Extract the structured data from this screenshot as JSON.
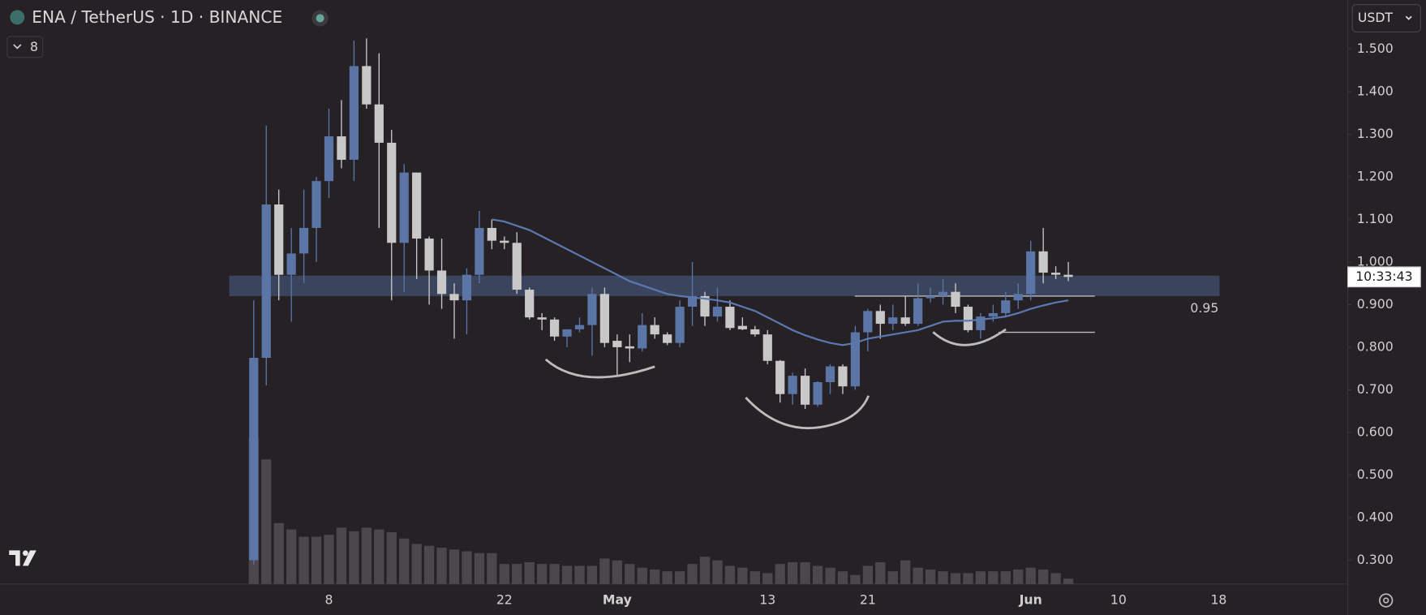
{
  "chart_data": {
    "type": "candlestick",
    "title": "ENA / TetherUS · 1D · BINANCE",
    "indicator_count": "8",
    "currency": "USDT",
    "countdown": "10:33:43",
    "categories": [
      null,
      null,
      null,
      null,
      null,
      null,
      "8",
      null,
      null,
      null,
      null,
      null,
      null,
      null,
      null,
      null,
      null,
      null,
      null,
      null,
      "22",
      null,
      null,
      null,
      null,
      null,
      null,
      null,
      null,
      "May",
      null,
      null,
      null,
      null,
      null,
      null,
      null,
      null,
      null,
      null,
      null,
      "13",
      null,
      null,
      null,
      null,
      null,
      null,
      null,
      "21",
      null,
      null,
      null,
      null,
      null,
      null,
      null,
      null,
      null,
      null,
      null,
      null,
      "Jun",
      null,
      null,
      null,
      null,
      null,
      null,
      "10",
      null,
      null,
      null,
      null,
      null,
      null,
      null,
      "18",
      null,
      null,
      null,
      null,
      null,
      null,
      null,
      null,
      null
    ],
    "open": [
      0.3,
      0.775,
      1.135,
      0.97,
      1.02,
      1.08,
      1.19,
      1.295,
      1.24,
      1.46,
      1.37,
      1.28,
      1.045,
      1.21,
      1.055,
      0.98,
      0.925,
      0.91,
      0.97,
      1.08,
      1.05,
      1.045,
      0.935,
      0.87,
      0.865,
      0.825,
      0.842,
      0.852,
      0.925,
      0.815,
      0.802,
      0.797,
      0.852,
      0.83,
      0.81,
      0.895,
      0.92,
      0.872,
      0.895,
      0.85,
      0.842,
      0.83,
      0.768,
      0.69,
      0.733,
      0.665,
      0.718,
      0.755,
      0.708,
      0.835,
      0.885,
      0.855,
      0.87,
      0.855,
      0.915,
      0.92,
      0.93,
      0.895,
      0.84,
      0.872,
      0.88,
      0.91,
      0.925,
      1.025,
      0.975,
      0.97,
      null,
      null,
      null,
      null,
      null,
      null,
      null,
      null,
      null,
      null,
      null,
      null,
      null,
      null,
      null,
      null,
      null,
      null,
      null,
      null,
      null
    ],
    "high": [
      0.91,
      1.32,
      1.17,
      1.08,
      1.17,
      1.2,
      1.36,
      1.38,
      1.52,
      1.525,
      1.49,
      1.31,
      1.23,
      1.21,
      1.06,
      1.055,
      0.95,
      0.985,
      1.12,
      1.1,
      1.06,
      1.07,
      0.94,
      0.88,
      0.87,
      0.84,
      0.87,
      0.94,
      0.94,
      0.83,
      0.83,
      0.88,
      0.87,
      0.835,
      0.91,
      1.0,
      0.93,
      0.94,
      0.91,
      0.87,
      0.85,
      0.84,
      0.77,
      0.74,
      0.75,
      0.72,
      0.76,
      0.76,
      0.85,
      0.89,
      0.9,
      0.9,
      0.92,
      0.95,
      0.94,
      0.96,
      0.95,
      0.9,
      0.88,
      0.9,
      0.93,
      0.95,
      1.05,
      1.08,
      0.99,
      1.0,
      null,
      null,
      null,
      null,
      null,
      null,
      null,
      null,
      null,
      null,
      null,
      null,
      null,
      null,
      null,
      null,
      null,
      null,
      null,
      null,
      null
    ],
    "low": [
      0.29,
      0.71,
      0.91,
      0.86,
      0.95,
      1.0,
      1.15,
      1.22,
      1.19,
      1.36,
      1.08,
      0.91,
      0.93,
      0.96,
      0.9,
      0.89,
      0.82,
      0.83,
      0.95,
      1.03,
      1.03,
      0.925,
      0.865,
      0.84,
      0.815,
      0.8,
      0.835,
      0.78,
      0.8,
      0.735,
      0.765,
      0.79,
      0.82,
      0.805,
      0.8,
      0.85,
      0.85,
      0.86,
      0.84,
      0.84,
      0.825,
      0.76,
      0.67,
      0.665,
      0.655,
      0.66,
      0.69,
      0.69,
      0.7,
      0.79,
      0.82,
      0.84,
      0.85,
      0.85,
      0.905,
      0.9,
      0.88,
      0.835,
      0.82,
      0.86,
      0.87,
      0.89,
      0.91,
      0.95,
      0.96,
      0.955,
      null,
      null,
      null,
      null,
      null,
      null,
      null,
      null,
      null,
      null,
      null,
      null,
      null,
      null,
      null,
      null,
      null,
      null,
      null,
      null,
      null
    ],
    "close": [
      0.775,
      1.135,
      0.97,
      1.02,
      1.08,
      1.19,
      1.295,
      1.24,
      1.46,
      1.37,
      1.28,
      1.045,
      1.21,
      1.055,
      0.98,
      0.925,
      0.91,
      0.97,
      1.08,
      1.05,
      1.045,
      0.935,
      0.87,
      0.865,
      0.825,
      0.842,
      0.852,
      0.925,
      0.81,
      0.8,
      0.797,
      0.852,
      0.83,
      0.81,
      0.895,
      0.92,
      0.872,
      0.895,
      0.845,
      0.842,
      0.83,
      0.768,
      0.69,
      0.733,
      0.665,
      0.718,
      0.755,
      0.708,
      0.835,
      0.885,
      0.855,
      0.87,
      0.855,
      0.915,
      0.92,
      0.93,
      0.895,
      0.84,
      0.872,
      0.88,
      0.91,
      0.925,
      1.025,
      0.975,
      0.97,
      0.965,
      null,
      null,
      null,
      null,
      null,
      null,
      null,
      null,
      null,
      null,
      null,
      null,
      null,
      null,
      null,
      null,
      null,
      null,
      null,
      null,
      null
    ],
    "volume": [
      160,
      137,
      67,
      60,
      52,
      52,
      54,
      62,
      58,
      62,
      60,
      57,
      50,
      44,
      42,
      40,
      38,
      36,
      34,
      34,
      22,
      22,
      24,
      22,
      22,
      20,
      20,
      20,
      28,
      26,
      22,
      18,
      16,
      14,
      14,
      22,
      30,
      26,
      20,
      18,
      14,
      12,
      22,
      24,
      24,
      20,
      18,
      14,
      10,
      20,
      24,
      14,
      26,
      18,
      16,
      14,
      12,
      12,
      14,
      14,
      14,
      16,
      18,
      16,
      12,
      6,
      null,
      null,
      null,
      null,
      null,
      null,
      null,
      null,
      null,
      null,
      null,
      null,
      null,
      null,
      null,
      null,
      null,
      null,
      null,
      null,
      null
    ],
    "ma": [
      null,
      null,
      null,
      null,
      null,
      null,
      null,
      null,
      null,
      null,
      null,
      null,
      null,
      null,
      null,
      null,
      null,
      null,
      null,
      1.1,
      1.095,
      1.085,
      1.075,
      1.06,
      1.045,
      1.03,
      1.015,
      1.0,
      0.985,
      0.97,
      0.955,
      0.945,
      0.935,
      0.925,
      0.92,
      0.917,
      0.914,
      0.91,
      0.905,
      0.895,
      0.885,
      0.87,
      0.855,
      0.84,
      0.828,
      0.818,
      0.81,
      0.805,
      0.81,
      0.82,
      0.825,
      0.83,
      0.835,
      0.84,
      0.85,
      0.86,
      0.862,
      0.862,
      0.865,
      0.868,
      0.872,
      0.88,
      0.89,
      0.898,
      0.905,
      0.91,
      null,
      null,
      null,
      null,
      null,
      null,
      null,
      null,
      null,
      null,
      null,
      null,
      null,
      null,
      null,
      null,
      null,
      null,
      null,
      null,
      null
    ],
    "up_color": "#5b76a6",
    "down_color": "#c8c8c8",
    "volume_color": "#4b474b",
    "ma_color": "#5b78b0",
    "zone": {
      "label": "0.95",
      "range": [
        0.92,
        0.968
      ]
    },
    "levels": [
      0.92,
      0.835
    ],
    "ylim": [
      0.244,
      1.615
    ],
    "yticks": [
      {
        "value": 1.5,
        "label": "1.500"
      },
      {
        "value": 1.4,
        "label": "1.400"
      },
      {
        "value": 1.3,
        "label": "1.300"
      },
      {
        "value": 1.2,
        "label": "1.200"
      },
      {
        "value": 1.1,
        "label": "1.100"
      },
      {
        "value": 1.0,
        "label": "1.000"
      },
      {
        "value": 0.9,
        "label": "0.900"
      },
      {
        "value": 0.8,
        "label": "0.800"
      },
      {
        "value": 0.7,
        "label": "0.700"
      },
      {
        "value": 0.6,
        "label": "0.600"
      },
      {
        "value": 0.5,
        "label": "0.500"
      },
      {
        "value": 0.4,
        "label": "0.400"
      },
      {
        "value": 0.3,
        "label": "0.300"
      }
    ]
  }
}
